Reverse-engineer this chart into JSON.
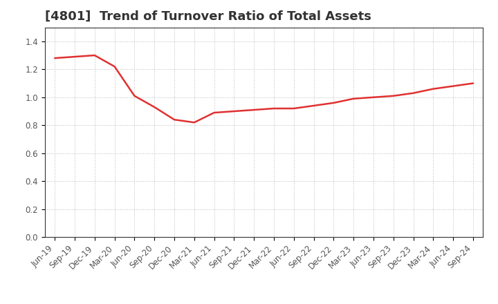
{
  "title": "[4801]  Trend of Turnover Ratio of Total Assets",
  "x_labels": [
    "Jun-19",
    "Sep-19",
    "Dec-19",
    "Mar-20",
    "Jun-20",
    "Sep-20",
    "Dec-20",
    "Mar-21",
    "Jun-21",
    "Sep-21",
    "Dec-21",
    "Mar-22",
    "Jun-22",
    "Sep-22",
    "Dec-22",
    "Mar-23",
    "Jun-23",
    "Sep-23",
    "Dec-23",
    "Mar-24",
    "Jun-24",
    "Sep-24"
  ],
  "y_values": [
    1.28,
    1.29,
    1.3,
    1.22,
    1.01,
    0.93,
    0.84,
    0.82,
    0.89,
    0.9,
    0.91,
    0.92,
    0.92,
    0.94,
    0.96,
    0.99,
    1.0,
    1.01,
    1.03,
    1.06,
    1.08,
    1.1
  ],
  "line_color": "#e03030",
  "ylim": [
    0.0,
    1.5
  ],
  "yticks": [
    0.0,
    0.2,
    0.4,
    0.6,
    0.8,
    1.0,
    1.2,
    1.4
  ],
  "background_color": "#ffffff",
  "plot_bg_color": "#ffffff",
  "grid_color": "#bbbbbb",
  "title_fontsize": 13,
  "tick_fontsize": 8.5,
  "title_color": "#333333"
}
